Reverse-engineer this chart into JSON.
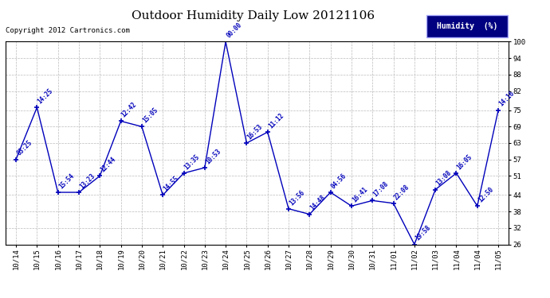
{
  "title": "Outdoor Humidity Daily Low 20121106",
  "copyright": "Copyright 2012 Cartronics.com",
  "legend_label": "Humidity  (%)",
  "x_labels": [
    "10/14",
    "10/15",
    "10/16",
    "10/17",
    "10/18",
    "10/19",
    "10/20",
    "10/21",
    "10/22",
    "10/23",
    "10/24",
    "10/25",
    "10/26",
    "10/27",
    "10/28",
    "10/29",
    "10/30",
    "10/31",
    "11/01",
    "11/02",
    "11/03",
    "11/04",
    "11/04",
    "11/05"
  ],
  "y_values": [
    57,
    76,
    45,
    45,
    51,
    71,
    69,
    44,
    52,
    54,
    100,
    63,
    67,
    39,
    37,
    45,
    40,
    42,
    41,
    26,
    46,
    52,
    40,
    75
  ],
  "time_labels": [
    "03:25",
    "14:25",
    "15:54",
    "13:23",
    "12:44",
    "12:42",
    "15:05",
    "14:55",
    "13:35",
    "10:53",
    "00:00",
    "16:53",
    "11:12",
    "13:56",
    "14:48",
    "04:56",
    "16:41",
    "17:08",
    "22:08",
    "19:58",
    "13:08",
    "16:05",
    "12:50",
    "14:16"
  ],
  "ylim": [
    26,
    100
  ],
  "yticks": [
    26,
    32,
    38,
    44,
    51,
    57,
    63,
    69,
    75,
    82,
    88,
    94,
    100
  ],
  "line_color": "#0000BB",
  "bg_color": "#ffffff",
  "grid_color": "#bbbbbb",
  "title_color": "#000000",
  "label_color": "#0000BB",
  "legend_bg": "#000080",
  "legend_fg": "#ffffff"
}
